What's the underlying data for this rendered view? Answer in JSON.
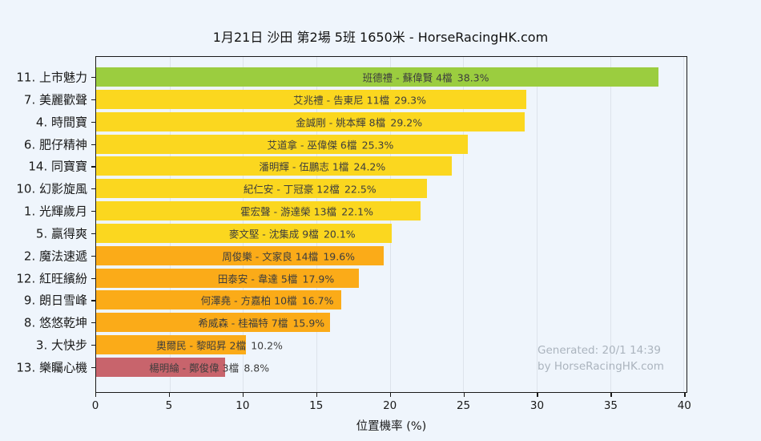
{
  "title": "1月21日  沙田  第2場  5班  1650米 - HorseRacingHK.com",
  "watermark": {
    "line1": "Generated: 20/1 14:39",
    "line2": "by HorseRacingHK.com"
  },
  "colors": {
    "background": "#EFF5FC",
    "grid": "#DDE3EB",
    "axis": "#1A1A1A",
    "bar_text": "#3D3D3D",
    "watermark_text": "#ABB4BE",
    "top_bar_green": "#9BCD3F",
    "mid_bar_yellow": "#FBD71F",
    "low_bar_orange": "#FBAB18",
    "bottom_bar_red": "#C8646C"
  },
  "chart_data": {
    "type": "bar",
    "orientation": "horizontal",
    "title": "1月21日  沙田  第2場  5班  1650米 - HorseRacingHK.com",
    "xlabel": "位置機率 (%)",
    "ylabel": "",
    "xlim": [
      0,
      40.2
    ],
    "xticks": [
      0,
      5,
      10,
      15,
      20,
      25,
      30,
      35,
      40
    ],
    "grid": true,
    "legend": false,
    "bars": [
      {
        "horse": "11. 上市魅力",
        "jockey": "班德禮",
        "trainer": "蘇偉賢",
        "gate": "4檔",
        "pct": "38.3%",
        "value": 38.3,
        "color": "#9BCD3F"
      },
      {
        "horse": "7. 美麗歡聲",
        "jockey": "艾兆禮",
        "trainer": "告東尼",
        "gate": "11檔",
        "pct": "29.3%",
        "value": 29.3,
        "color": "#FBD71F"
      },
      {
        "horse": "4. 時間寶",
        "jockey": "金誠剛",
        "trainer": "姚本輝",
        "gate": "8檔",
        "pct": "29.2%",
        "value": 29.2,
        "color": "#FBD71F"
      },
      {
        "horse": "6. 肥仔精神",
        "jockey": "艾道拿",
        "trainer": "巫偉傑",
        "gate": "6檔",
        "pct": "25.3%",
        "value": 25.3,
        "color": "#FBD71F"
      },
      {
        "horse": "14. 同寶寶",
        "jockey": "潘明輝",
        "trainer": "伍鵬志",
        "gate": "1檔",
        "pct": "24.2%",
        "value": 24.2,
        "color": "#FBD71F"
      },
      {
        "horse": "10. 幻影旋風",
        "jockey": "紀仁安",
        "trainer": "丁冠豪",
        "gate": "12檔",
        "pct": "22.5%",
        "value": 22.5,
        "color": "#FBD71F"
      },
      {
        "horse": "1. 光輝歲月",
        "jockey": "霍宏聲",
        "trainer": "游達榮",
        "gate": "13檔",
        "pct": "22.1%",
        "value": 22.1,
        "color": "#FBD71F"
      },
      {
        "horse": "5. 贏得爽",
        "jockey": "麥文堅",
        "trainer": "沈集成",
        "gate": "9檔",
        "pct": "20.1%",
        "value": 20.1,
        "color": "#FBD71F"
      },
      {
        "horse": "2. 魔法速遞",
        "jockey": "周俊樂",
        "trainer": "文家良",
        "gate": "14檔",
        "pct": "19.6%",
        "value": 19.6,
        "color": "#FBAB18"
      },
      {
        "horse": "12. 紅旺繽紛",
        "jockey": "田泰安",
        "trainer": "韋達",
        "gate": "5檔",
        "pct": "17.9%",
        "value": 17.9,
        "color": "#FBAB18"
      },
      {
        "horse": "9. 朗日雪峰",
        "jockey": "何澤堯",
        "trainer": "方嘉柏",
        "gate": "10檔",
        "pct": "16.7%",
        "value": 16.7,
        "color": "#FBAB18"
      },
      {
        "horse": "8. 悠悠乾坤",
        "jockey": "希威森",
        "trainer": "桂福特",
        "gate": "7檔",
        "pct": "15.9%",
        "value": 15.9,
        "color": "#FBAB18"
      },
      {
        "horse": "3. 大快步",
        "jockey": "奧爾民",
        "trainer": "黎昭昇",
        "gate": "2檔",
        "pct": "10.2%",
        "value": 10.2,
        "color": "#FBAB18"
      },
      {
        "horse": "13. 樂矚心機",
        "jockey": "楊明綸",
        "trainer": "鄭俊偉",
        "gate": "3檔",
        "pct": "8.8%",
        "value": 8.8,
        "color": "#C8646C"
      }
    ],
    "watermark": [
      "Generated: 20/1 14:39",
      "by HorseRacingHK.com"
    ]
  }
}
